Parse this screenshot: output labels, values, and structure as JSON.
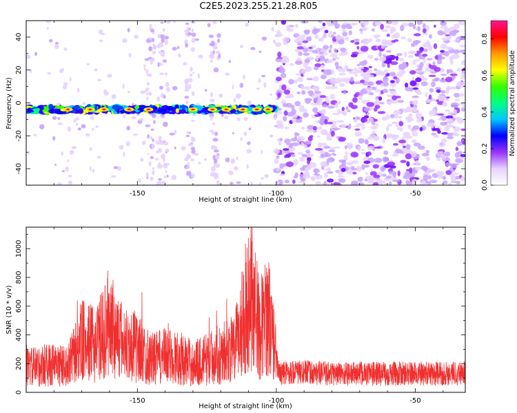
{
  "title": "C2E5.2023.255.21.28.R05",
  "colors": {
    "snr_line": "#f03030",
    "colormap": [
      "#ffffff",
      "#e6d2ff",
      "#9933ff",
      "#0000ff",
      "#00c8ff",
      "#00ff80",
      "#33ff00",
      "#ffff00",
      "#ff9900",
      "#ff0000",
      "#ff1493"
    ]
  },
  "chart_data": [
    {
      "type": "heatmap",
      "name": "spectrogram",
      "xlabel": "Height of straight line (km)",
      "ylabel": "Frequency (Hz)",
      "xlim": [
        -190,
        -32
      ],
      "ylim": [
        -50,
        50
      ],
      "xticks": [
        -150,
        -100,
        -50
      ],
      "yticks": [
        -40,
        -20,
        0,
        20,
        40
      ],
      "colorbar": {
        "label": "Normalized spectral amplitude",
        "range": [
          0,
          0.9
        ],
        "ticks": [
          0.0,
          0.2,
          0.4,
          0.6,
          0.8
        ]
      },
      "features": {
        "signal_band_hz": -4,
        "signal_band_x_range": [
          -190,
          -100
        ],
        "noise_region_x_range": [
          -100,
          -32
        ]
      }
    },
    {
      "type": "line",
      "name": "snr",
      "xlabel": "Height of straight line (km)",
      "ylabel": "SNR (10 * v/v)",
      "xlim": [
        -190,
        -32
      ],
      "ylim": [
        0,
        1150
      ],
      "xticks": [
        -150,
        -100,
        -50
      ],
      "yticks": [
        0,
        200,
        400,
        600,
        800,
        1000
      ],
      "envelope": {
        "x": [
          -190,
          -180,
          -175,
          -170,
          -165,
          -160,
          -155,
          -150,
          -145,
          -140,
          -135,
          -130,
          -125,
          -120,
          -115,
          -112,
          -109,
          -106,
          -103,
          -101,
          -99,
          -95,
          -90,
          -80,
          -70,
          -60,
          -50,
          -40,
          -32
        ],
        "y": [
          170,
          190,
          180,
          360,
          330,
          470,
          340,
          310,
          230,
          250,
          240,
          200,
          230,
          270,
          300,
          520,
          700,
          430,
          560,
          350,
          130,
          140,
          140,
          130,
          130,
          130,
          130,
          130,
          140
        ]
      }
    }
  ]
}
